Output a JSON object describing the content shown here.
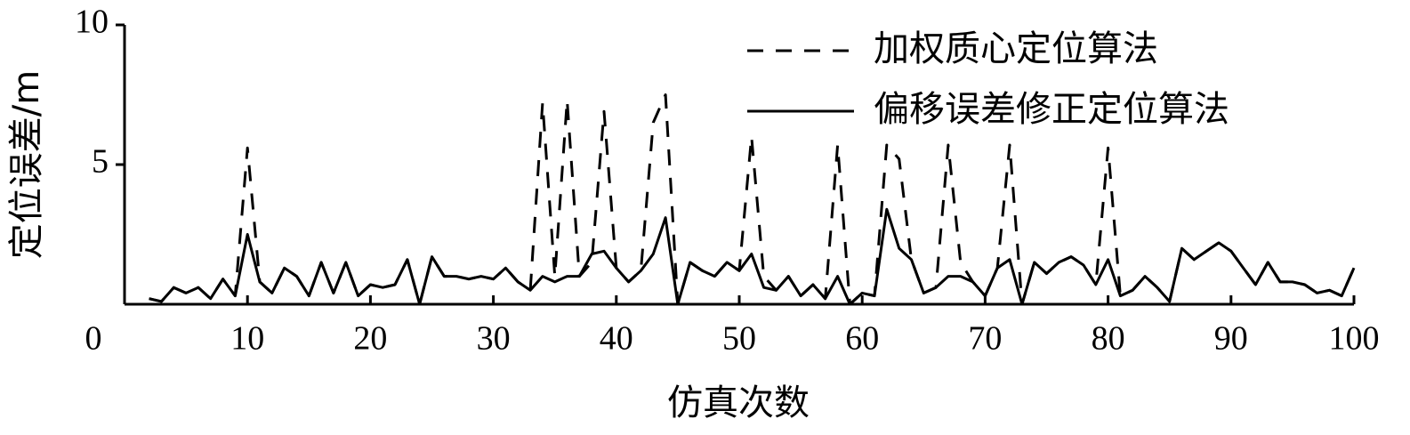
{
  "chart_data": {
    "type": "line",
    "x_label": "仿真次数",
    "y_label": "定位误差/m",
    "x": [
      2,
      3,
      4,
      5,
      6,
      7,
      8,
      9,
      10,
      11,
      12,
      13,
      14,
      15,
      16,
      17,
      18,
      19,
      20,
      21,
      22,
      23,
      24,
      25,
      26,
      27,
      28,
      29,
      30,
      31,
      32,
      33,
      34,
      35,
      36,
      37,
      38,
      39,
      40,
      41,
      42,
      43,
      44,
      45,
      46,
      47,
      48,
      49,
      50,
      51,
      52,
      53,
      54,
      55,
      56,
      57,
      58,
      59,
      60,
      61,
      62,
      63,
      64,
      65,
      66,
      67,
      68,
      69,
      70,
      71,
      72,
      73,
      74,
      75,
      76,
      77,
      78,
      79,
      80,
      81,
      82,
      83,
      84,
      85,
      86,
      87,
      88,
      89,
      90,
      91,
      92,
      93,
      94,
      95,
      96,
      97,
      98,
      99,
      100
    ],
    "series": [
      {
        "name": "加权质心定位算法",
        "color": "#000000",
        "dash": true,
        "values": [
          0.2,
          0.1,
          0.6,
          0.4,
          0.6,
          0.2,
          0.9,
          0.3,
          5.6,
          0.8,
          0.4,
          1.3,
          1.0,
          0.3,
          1.5,
          0.4,
          1.5,
          0.3,
          0.7,
          0.6,
          0.7,
          1.6,
          0.0,
          1.7,
          1.0,
          1.0,
          0.9,
          1.0,
          0.9,
          1.3,
          0.8,
          0.5,
          7.2,
          1.0,
          7.3,
          1.0,
          1.5,
          6.9,
          1.3,
          0.8,
          1.2,
          6.5,
          7.5,
          0.0,
          1.5,
          1.2,
          1.0,
          1.5,
          1.2,
          6.0,
          1.0,
          0.5,
          1.0,
          0.3,
          0.7,
          0.2,
          5.7,
          0.0,
          0.4,
          0.3,
          5.7,
          5.2,
          1.6,
          0.4,
          0.6,
          5.7,
          1.5,
          0.8,
          0.3,
          1.3,
          5.7,
          0.0,
          1.5,
          1.1,
          1.5,
          1.7,
          1.4,
          0.7,
          5.6,
          0.3,
          0.5,
          1.0,
          0.6,
          0.1,
          2.0,
          1.6,
          1.9,
          2.2,
          1.9,
          1.3,
          0.7,
          1.5,
          0.8,
          0.8,
          0.7,
          0.4,
          0.5,
          0.3,
          1.3
        ]
      },
      {
        "name": "偏移误差修正定位算法",
        "color": "#000000",
        "dash": false,
        "values": [
          0.2,
          0.1,
          0.6,
          0.4,
          0.6,
          0.2,
          0.9,
          0.3,
          2.5,
          0.8,
          0.4,
          1.3,
          1.0,
          0.3,
          1.5,
          0.4,
          1.5,
          0.3,
          0.7,
          0.6,
          0.7,
          1.6,
          0.0,
          1.7,
          1.0,
          1.0,
          0.9,
          1.0,
          0.9,
          1.3,
          0.8,
          0.5,
          1.0,
          0.8,
          1.0,
          1.0,
          1.8,
          1.9,
          1.3,
          0.8,
          1.2,
          1.8,
          3.1,
          0.0,
          1.5,
          1.2,
          1.0,
          1.5,
          1.2,
          1.8,
          0.6,
          0.5,
          1.0,
          0.3,
          0.7,
          0.2,
          1.0,
          0.0,
          0.4,
          0.3,
          3.4,
          2.0,
          1.6,
          0.4,
          0.6,
          1.0,
          1.0,
          0.8,
          0.3,
          1.3,
          1.6,
          0.0,
          1.5,
          1.1,
          1.5,
          1.7,
          1.4,
          0.7,
          1.6,
          0.3,
          0.5,
          1.0,
          0.6,
          0.1,
          2.0,
          1.6,
          1.9,
          2.2,
          1.9,
          1.3,
          0.7,
          1.5,
          0.8,
          0.8,
          0.7,
          0.4,
          0.5,
          0.3,
          1.3
        ]
      }
    ],
    "xlim": [
      0,
      100
    ],
    "xticks": [
      0,
      10,
      20,
      30,
      40,
      50,
      60,
      70,
      80,
      90,
      100
    ],
    "ylim": [
      0,
      10
    ],
    "yticks": [
      5,
      10
    ],
    "legend": "upper right"
  }
}
